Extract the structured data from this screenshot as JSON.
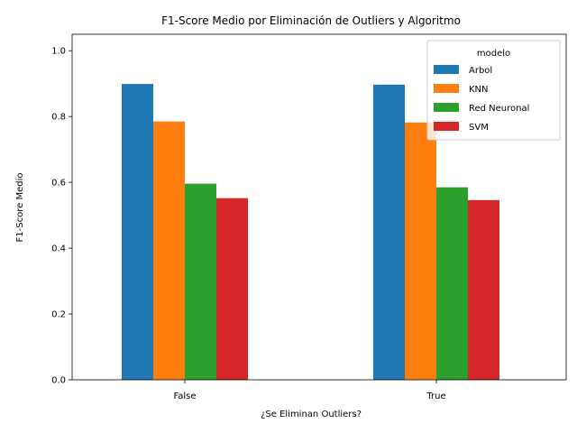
{
  "chart_data": {
    "type": "bar",
    "title": "F1-Score Medio por Eliminación de Outliers y Algoritmo",
    "xlabel": "¿Se Eliminan Outliers?",
    "ylabel": "F1-Score Medio",
    "categories": [
      "False",
      "True"
    ],
    "series": [
      {
        "name": "Arbol",
        "color": "#1f77b4",
        "values": [
          0.899,
          0.897
        ]
      },
      {
        "name": "KNN",
        "color": "#ff7f0e",
        "values": [
          0.785,
          0.782
        ]
      },
      {
        "name": "Red Neuronal",
        "color": "#2ca02c",
        "values": [
          0.596,
          0.585
        ]
      },
      {
        "name": "SVM",
        "color": "#d62728",
        "values": [
          0.552,
          0.546
        ]
      }
    ],
    "ylim": [
      0,
      1.05
    ],
    "yticks": [
      0.0,
      0.2,
      0.4,
      0.6,
      0.8,
      1.0
    ],
    "ytick_labels": [
      "0.0",
      "0.2",
      "0.4",
      "0.6",
      "0.8",
      "1.0"
    ],
    "legend": {
      "title": "modelo",
      "placement": "top-right"
    },
    "grid": false
  }
}
